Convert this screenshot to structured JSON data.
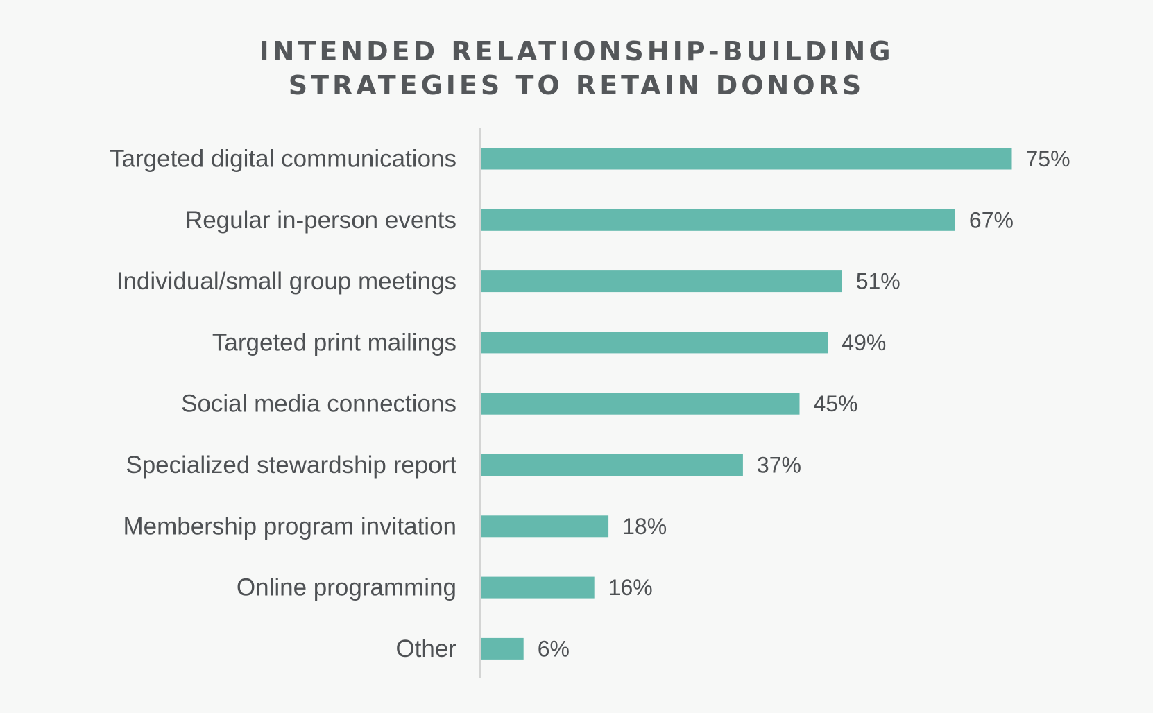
{
  "title_lines": [
    "INTENDED RELATIONSHIP-BUILDING",
    "STRATEGIES TO RETAIN DONORS"
  ],
  "colors": {
    "bar": "#64b9ad",
    "axis": "#d4d5d4",
    "text": "#4e5154",
    "background": "#f7f8f7"
  },
  "chart_data": {
    "type": "bar",
    "orientation": "horizontal",
    "title": "INTENDED RELATIONSHIP-BUILDING STRATEGIES TO RETAIN DONORS",
    "categories": [
      "Targeted digital communications",
      "Regular in-person events",
      "Individual/small group meetings",
      "Targeted print mailings",
      "Social media connections",
      "Specialized stewardship report",
      "Membership program invitation",
      "Online programming",
      "Other"
    ],
    "values": [
      75,
      67,
      51,
      49,
      45,
      37,
      18,
      16,
      6
    ],
    "value_labels": [
      "75%",
      "67%",
      "51%",
      "49%",
      "45%",
      "37%",
      "18%",
      "16%",
      "6%"
    ],
    "unit": "%",
    "xlim": [
      0,
      100
    ],
    "grid": false,
    "legend": "none"
  }
}
